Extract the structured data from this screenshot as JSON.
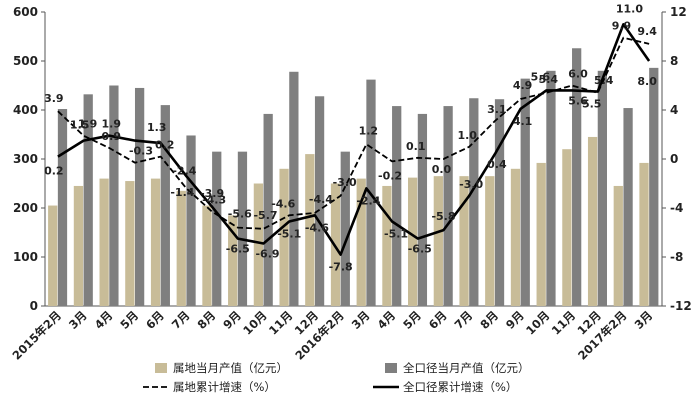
{
  "chart_data": {
    "type": "bar",
    "categories": [
      "2015年2月",
      "3月",
      "4月",
      "5月",
      "6月",
      "7月",
      "8月",
      "9月",
      "10月",
      "11月",
      "12月",
      "2016年2月",
      "3月",
      "4月",
      "5月",
      "6月",
      "7月",
      "8月",
      "9月",
      "10月",
      "11月",
      "12月",
      "2017年2月",
      "3月"
    ],
    "left_axis": {
      "ylim": [
        0,
        600
      ],
      "ticks": [
        "0",
        "100",
        "200",
        "300",
        "400",
        "500",
        "600"
      ]
    },
    "right_axis": {
      "ylim": [
        -12,
        12
      ],
      "ticks": [
        "-12",
        "-8",
        "-4",
        "0",
        "4",
        "8",
        "12"
      ]
    },
    "series": [
      {
        "name": "属地当月产值（亿元）",
        "kind": "bar",
        "axis": "left",
        "color": "#c8bc98",
        "values": [
          205,
          245,
          260,
          255,
          260,
          235,
          205,
          185,
          250,
          280,
          310,
          250,
          260,
          245,
          262,
          265,
          265,
          265,
          280,
          292,
          320,
          345,
          245,
          292
        ]
      },
      {
        "name": "全口径当月产值（亿元）",
        "kind": "bar",
        "axis": "left",
        "color": "#7f7f7f",
        "values": [
          402,
          432,
          450,
          445,
          410,
          348,
          315,
          315,
          392,
          478,
          428,
          315,
          462,
          408,
          392,
          408,
          424,
          422,
          464,
          480,
          526,
          480,
          404,
          486
        ]
      },
      {
        "name": "属地累计增速（%）",
        "kind": "line",
        "axis": "right",
        "style": "dashed",
        "color": "#000000",
        "values": [
          3.9,
          1.9,
          0.9,
          -0.3,
          0.2,
          -2.4,
          -4.3,
          -5.6,
          -5.7,
          -4.6,
          -4.4,
          -3.0,
          1.2,
          -0.2,
          0.1,
          0.0,
          1.0,
          3.1,
          4.9,
          5.4,
          6.0,
          5.4,
          9.9,
          9.4
        ],
        "labels": [
          "3.9",
          "1.9",
          "0.9",
          "-0.3",
          "0.2",
          "-2.4",
          "-4.3",
          "-5.6",
          "-5.7",
          "-4.6",
          "-4.4",
          "-3.0",
          "1.2",
          "-0.2",
          "0.1",
          "0.0",
          "1.0",
          "3.1",
          "4.9",
          "5.4",
          "6.0",
          "5.4",
          "9.9",
          "9.4"
        ]
      },
      {
        "name": "全口径累计增速（%）",
        "kind": "line",
        "axis": "right",
        "style": "solid",
        "color": "#000000",
        "values": [
          0.2,
          1.5,
          1.9,
          1.5,
          1.3,
          -1.4,
          -3.9,
          -6.5,
          -6.9,
          -5.1,
          -4.6,
          -7.8,
          -2.4,
          -5.1,
          -6.5,
          -5.8,
          -3.0,
          0.4,
          4.1,
          5.6,
          5.6,
          5.5,
          11.0,
          8.0
        ],
        "labels": [
          "0.2",
          "1.5",
          "1.9",
          "",
          "1.3",
          "-1.4",
          "-3.9",
          "-6.5",
          "-6.9",
          "-5.1",
          "-4.6",
          "-7.8",
          "-2.4",
          "-5.1",
          "-6.5",
          "-5.8",
          "-3.0",
          "0.4",
          "4.1",
          "5.6",
          "5.6",
          "5.5",
          "11.0",
          "8.0"
        ]
      }
    ],
    "legend": [
      {
        "text": "属地当月产值（亿元）",
        "symbol": "bar",
        "color": "#c8bc98"
      },
      {
        "text": "全口径当月产值（亿元）",
        "symbol": "bar",
        "color": "#7f7f7f"
      },
      {
        "text": "属地累计增速（%）",
        "symbol": "dashed-line",
        "color": "#000000"
      },
      {
        "text": "全口径累计增速（%）",
        "symbol": "solid-line",
        "color": "#000000"
      }
    ],
    "legend_position": "bottom",
    "grid": false
  }
}
